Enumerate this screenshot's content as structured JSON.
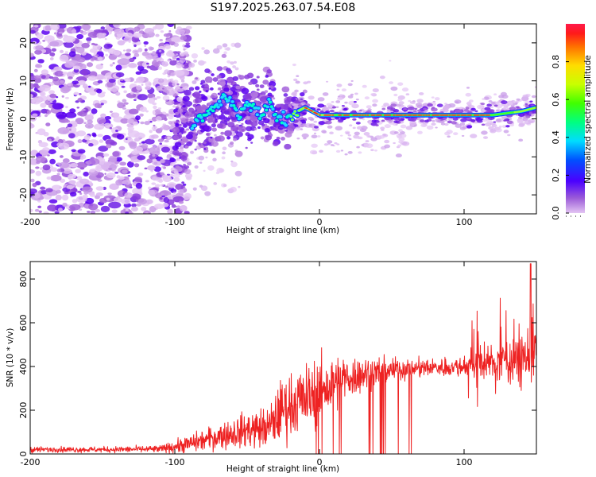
{
  "title": "S197.2025.263.07.54.E08",
  "chart_data": [
    {
      "type": "heatmap",
      "xlabel": "Height of straight line (km)",
      "ylabel": "Frequency (Hz)",
      "xlim": [
        -200,
        150
      ],
      "ylim": [
        -25,
        25
      ],
      "xticks": [
        -200,
        -100,
        0,
        100
      ],
      "yticks": [
        -20,
        -10,
        0,
        10,
        20
      ],
      "ridge": {
        "description": "dominant spectral line",
        "x": [
          -88,
          -80,
          -72,
          -65,
          -60,
          -55,
          -50,
          -45,
          -40,
          -35,
          -30,
          -25,
          -20,
          -15,
          -10,
          0,
          20,
          50,
          80,
          100,
          120,
          140,
          150
        ],
        "y": [
          -2,
          1,
          3,
          6,
          4,
          1,
          4,
          3,
          0,
          5,
          0,
          0,
          1,
          2,
          3,
          1,
          1,
          1,
          1,
          1,
          1,
          2,
          3
        ]
      },
      "colorbar": {
        "label": "Normalized spectral amplitude",
        "ticks": [
          "0.0",
          "0.2",
          "0.4",
          "0.6",
          "0.8"
        ],
        "range": [
          0,
          1
        ]
      }
    },
    {
      "type": "line",
      "xlabel": "Height of straight line (km)",
      "ylabel": "SNR (10 * v/v)",
      "xlim": [
        -200,
        150
      ],
      "ylim": [
        0,
        880
      ],
      "xticks": [
        -200,
        -100,
        0,
        100
      ],
      "yticks": [
        0,
        200,
        400,
        600,
        800
      ],
      "color": "#ee2222",
      "envelope": {
        "x": [
          -200,
          -150,
          -110,
          -90,
          -70,
          -50,
          -35,
          -25,
          -15,
          -5,
          10,
          20,
          40,
          60,
          80,
          100,
          120,
          140,
          150
        ],
        "mean": [
          20,
          20,
          22,
          45,
          80,
          110,
          120,
          210,
          240,
          260,
          320,
          350,
          380,
          390,
          395,
          400,
          420,
          440,
          460
        ],
        "noise": [
          8,
          8,
          10,
          25,
          35,
          50,
          60,
          90,
          90,
          100,
          80,
          60,
          40,
          30,
          25,
          30,
          50,
          80,
          100
        ]
      },
      "annotations": {
        "dropouts_x_range": [
          -5,
          65
        ],
        "peak": {
          "x": 146,
          "y": 870
        }
      }
    }
  ]
}
